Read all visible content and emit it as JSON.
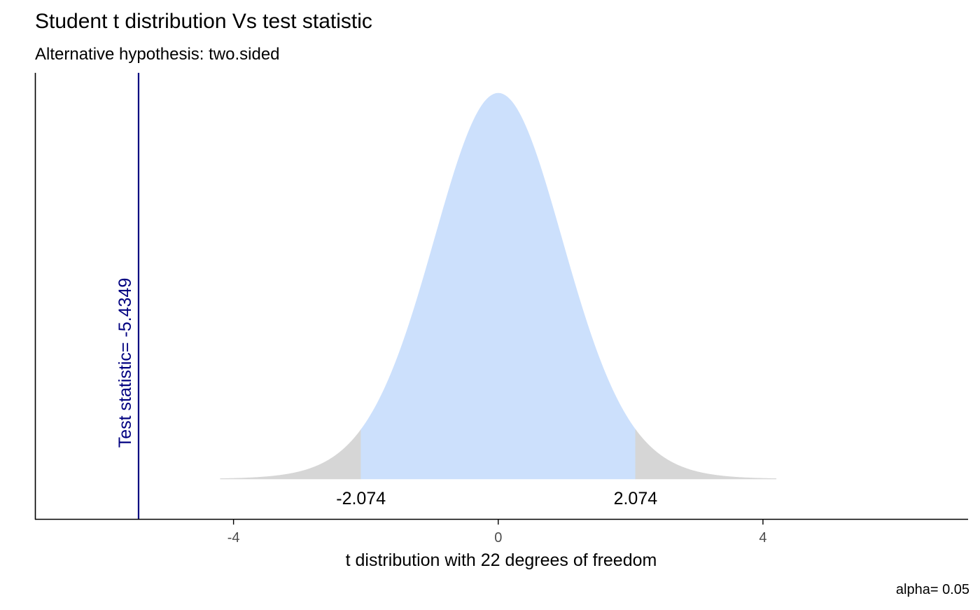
{
  "chart_data": {
    "type": "area",
    "title": "Student t distribution Vs test statistic",
    "subtitle": "Alternative hypothesis: two.sided",
    "xlabel": "t distribution with 22 degrees of freedom",
    "ylabel": "",
    "caption": "alpha= 0.05",
    "degrees_of_freedom": 22,
    "alpha": 0.05,
    "xlim": [
      -7.0,
      7.1
    ],
    "curve_range": [
      -4.2,
      4.2
    ],
    "x_ticks": [
      -4,
      0,
      4
    ],
    "x_tick_labels": [
      "-4",
      "0",
      "4"
    ],
    "critical_values": [
      -2.074,
      2.074
    ],
    "critical_value_labels": [
      "-2.074",
      "2.074"
    ],
    "test_statistic": -5.4349,
    "test_statistic_label": "Test statistic= -5.4349",
    "regions": [
      {
        "name": "rejection",
        "from": -4.2,
        "to": -2.074,
        "color": "#d6d6d6"
      },
      {
        "name": "acceptance",
        "from": -2.074,
        "to": 2.074,
        "color": "#cce0fc"
      },
      {
        "name": "rejection",
        "from": 2.074,
        "to": 4.2,
        "color": "#d6d6d6"
      }
    ],
    "colors": {
      "test_line": "#000080",
      "axis": "#000000",
      "tick_label": "#4d4d4d"
    },
    "grid": false,
    "legend": "none"
  }
}
